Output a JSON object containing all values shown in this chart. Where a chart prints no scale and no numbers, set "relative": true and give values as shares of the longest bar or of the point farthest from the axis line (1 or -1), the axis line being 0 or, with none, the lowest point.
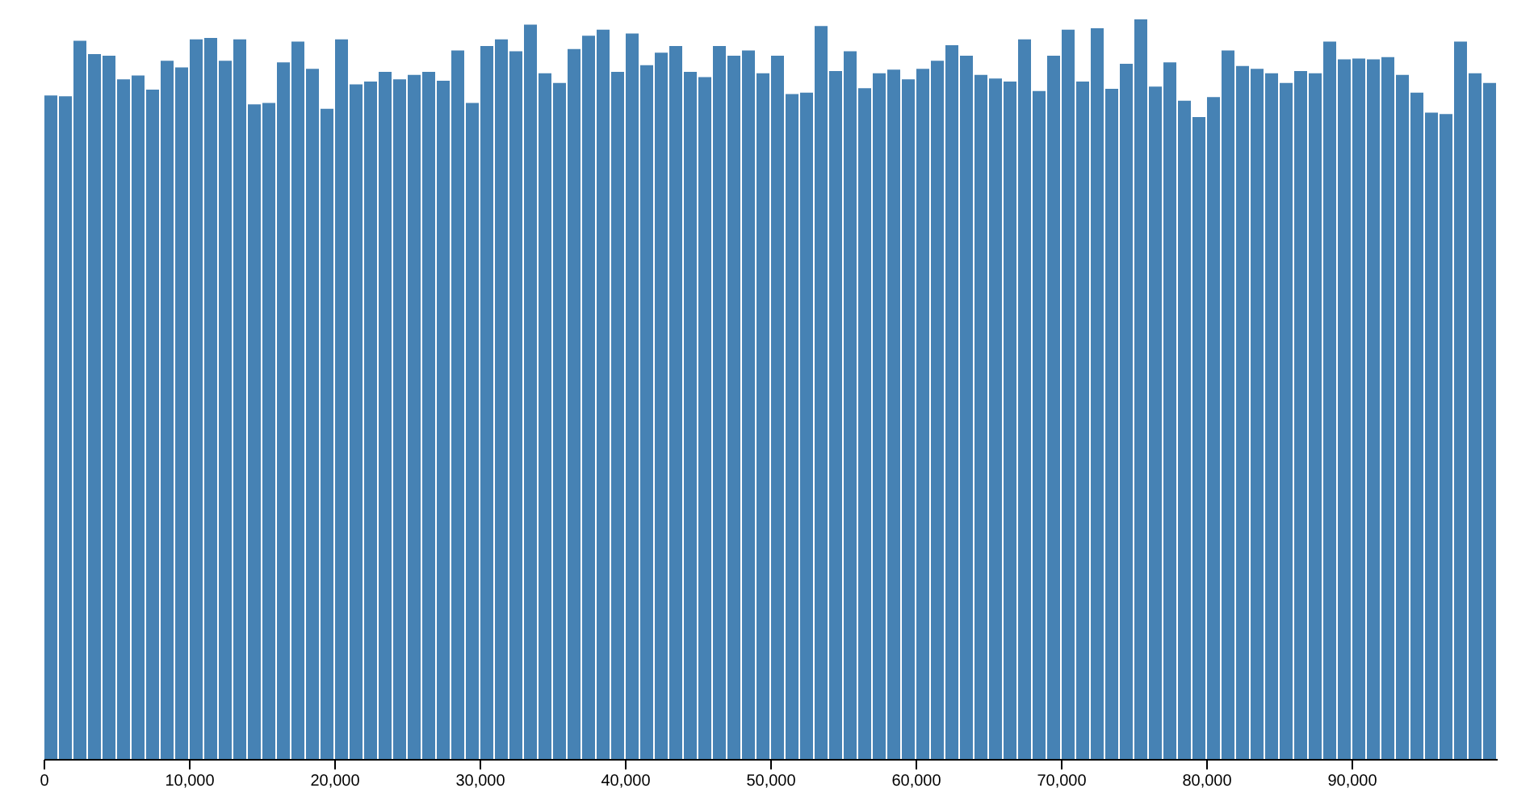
{
  "chart_data": {
    "type": "bar",
    "relative": true,
    "color": "#4682b4",
    "x": [
      500,
      1500,
      2500,
      3500,
      4500,
      5500,
      6500,
      7500,
      8500,
      9500,
      10500,
      11500,
      12500,
      13500,
      14500,
      15500,
      16500,
      17500,
      18500,
      19500,
      20500,
      21500,
      22500,
      23500,
      24500,
      25500,
      26500,
      27500,
      28500,
      29500,
      30500,
      31500,
      32500,
      33500,
      34500,
      35500,
      36500,
      37500,
      38500,
      39500,
      40500,
      41500,
      42500,
      43500,
      44500,
      45500,
      46500,
      47500,
      48500,
      49500,
      50500,
      51500,
      52500,
      53500,
      54500,
      55500,
      56500,
      57500,
      58500,
      59500,
      60500,
      61500,
      62500,
      63500,
      64500,
      65500,
      66500,
      67500,
      68500,
      69500,
      70500,
      71500,
      72500,
      73500,
      74500,
      75500,
      76500,
      77500,
      78500,
      79500,
      80500,
      81500,
      82500,
      83500,
      84500,
      85500,
      86500,
      87500,
      88500,
      89500,
      90500,
      91500,
      92500,
      93500,
      94500,
      95500,
      96500,
      97500,
      98500,
      99500
    ],
    "values": [
      0.897,
      0.896,
      0.971,
      0.953,
      0.951,
      0.919,
      0.924,
      0.905,
      0.944,
      0.935,
      0.973,
      0.975,
      0.944,
      0.973,
      0.885,
      0.887,
      0.942,
      0.97,
      0.933,
      0.879,
      0.973,
      0.912,
      0.916,
      0.929,
      0.919,
      0.925,
      0.929,
      0.917,
      0.958,
      0.887,
      0.964,
      0.973,
      0.957,
      0.993,
      0.927,
      0.914,
      0.96,
      0.978,
      0.986,
      0.929,
      0.981,
      0.938,
      0.955,
      0.964,
      0.929,
      0.922,
      0.964,
      0.951,
      0.958,
      0.927,
      0.951,
      0.899,
      0.901,
      0.991,
      0.93,
      0.957,
      0.907,
      0.927,
      0.932,
      0.919,
      0.933,
      0.944,
      0.965,
      0.951,
      0.925,
      0.92,
      0.916,
      0.973,
      0.903,
      0.951,
      0.986,
      0.916,
      0.988,
      0.906,
      0.94,
      1,
      0.909,
      0.942,
      0.89,
      0.868,
      0.895,
      0.958,
      0.937,
      0.933,
      0.927,
      0.914,
      0.93,
      0.927,
      0.97,
      0.946,
      0.947,
      0.946,
      0.949,
      0.925,
      0.901,
      0.874,
      0.872,
      0.97,
      0.927,
      0.914
    ],
    "xlim": [
      0,
      100000
    ],
    "xticks": [
      0,
      {
        "value": 10000,
        "label": "10,000"
      },
      {
        "value": 20000,
        "label": "20,000"
      },
      {
        "value": 30000,
        "label": "30,000"
      },
      {
        "value": 40000,
        "label": "40,000"
      },
      {
        "value": 50000,
        "label": "50,000"
      },
      {
        "value": 60000,
        "label": "60,000"
      },
      {
        "value": 70000,
        "label": "70,000"
      },
      {
        "value": 80000,
        "label": "80,000"
      },
      {
        "value": 90000,
        "label": "90,000"
      }
    ]
  }
}
